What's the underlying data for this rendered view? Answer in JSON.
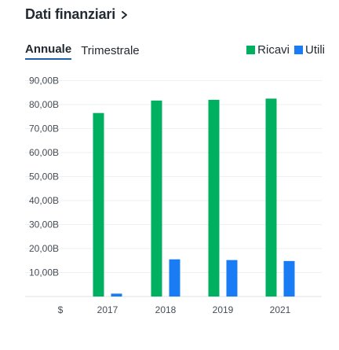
{
  "header": {
    "title": "Dati finanziari",
    "chevron_icon": "chevron-right-icon"
  },
  "tabs": [
    {
      "label": "Annuale",
      "active": true
    },
    {
      "label": "Trimestrale",
      "active": false
    }
  ],
  "chart_data": {
    "type": "bar",
    "categories": [
      "2017",
      "2018",
      "2019",
      "2021"
    ],
    "series": [
      {
        "name": "Ricavi",
        "color": "#00b061",
        "values": [
          76.5,
          81.7,
          82,
          82.5
        ]
      },
      {
        "name": "Utili",
        "color": "#1a7cf5",
        "values": [
          1.2,
          15.5,
          15.2,
          14.8
        ]
      }
    ],
    "ylim": [
      0,
      90
    ],
    "yticks": [
      10,
      20,
      30,
      40,
      50,
      60,
      70,
      80,
      90
    ],
    "ytick_labels": [
      "10,00B",
      "20,00B",
      "30,00B",
      "40,00B",
      "50,00B",
      "60,00B",
      "70,00B",
      "80,00B",
      "90,00B"
    ],
    "yaxis_unit": "$",
    "grid": true,
    "legend_position": "top-right"
  }
}
